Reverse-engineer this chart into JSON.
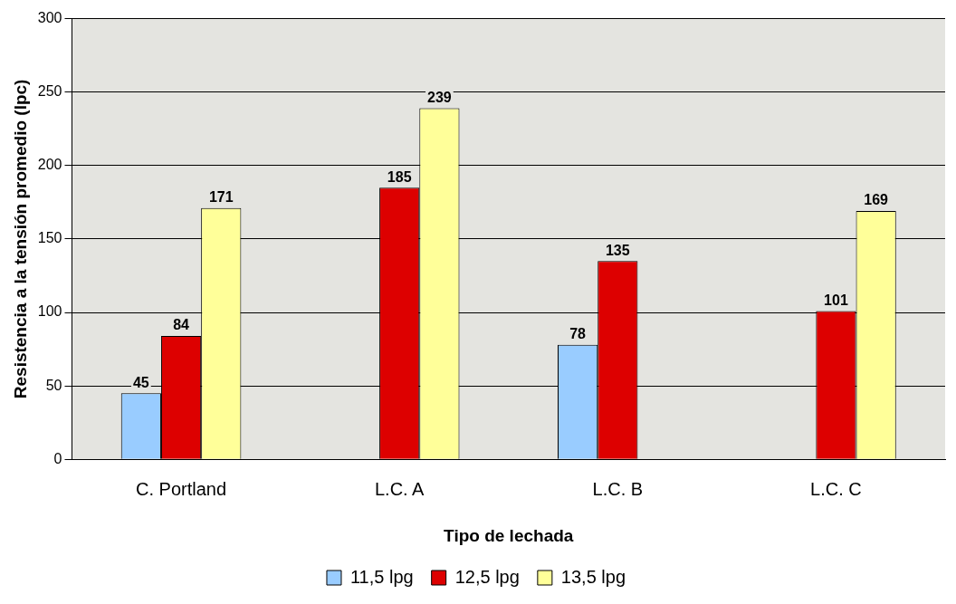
{
  "chart_data": {
    "type": "bar",
    "xlabel": "Tipo de lechada",
    "ylabel": "Resistencia a la tensión promedio (lpc)",
    "categories": [
      "C. Portland",
      "L.C. A",
      "L.C. B",
      "L.C. C"
    ],
    "series": [
      {
        "name": "11,5 lpg",
        "color": "#99ccff",
        "values": [
          45,
          null,
          78,
          null
        ]
      },
      {
        "name": "12,5 lpg",
        "color": "#dd0000",
        "values": [
          84,
          185,
          135,
          101
        ]
      },
      {
        "name": "13,5 lpg",
        "color": "#ffff99",
        "values": [
          171,
          239,
          null,
          169
        ]
      }
    ],
    "ylim": [
      0,
      300
    ],
    "yticks": [
      0,
      50,
      100,
      150,
      200,
      250,
      300
    ],
    "grid": "y",
    "legend": "bottom",
    "data_labels": true
  }
}
